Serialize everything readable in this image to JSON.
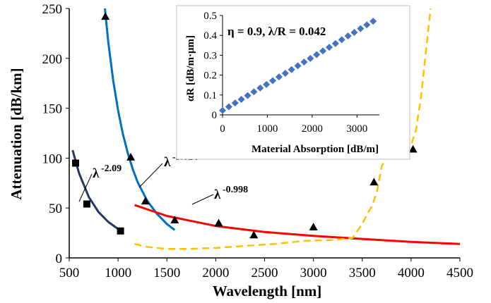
{
  "chart_data": [
    {
      "type": "scatter",
      "xlabel": "Wavelength [nm]",
      "ylabel": "Attenuation [dB/km]",
      "xlim": [
        500,
        4500
      ],
      "ylim": [
        0,
        250
      ],
      "xticks": [
        "500",
        "1000",
        "1500",
        "2000",
        "2500",
        "3000",
        "3500",
        "4000",
        "4500"
      ],
      "yticks": [
        "0",
        "50",
        "100",
        "150",
        "200",
        "250"
      ],
      "grid": false,
      "legend": "none",
      "series": [
        {
          "marker": "square",
          "color": "#000000",
          "x": [
            565,
            680,
            1025
          ],
          "y": [
            95,
            54,
            27
          ]
        },
        {
          "marker": "triangle",
          "color": "#000000",
          "x": [
            870,
            1130,
            1280,
            1580,
            2030,
            2390,
            3000,
            3620,
            4020
          ],
          "y": [
            242,
            101,
            57,
            38,
            35,
            23,
            31,
            76,
            109
          ]
        },
        {
          "style": "solid",
          "color": "#1f3864",
          "fit_label": "λ",
          "fit_exponent": "-2.09",
          "x": [
            535,
            600,
            700,
            800,
            900,
            1000,
            1030
          ],
          "y": [
            108,
            85,
            61,
            46,
            36,
            29,
            27
          ]
        },
        {
          "style": "solid",
          "color": "#0070c0",
          "fit_label": "λ",
          "fit_exponent": "-3.624",
          "x": [
            865,
            900,
            950,
            1000,
            1050,
            1100,
            1150,
            1200,
            1300,
            1400,
            1500,
            1580
          ],
          "y": [
            250,
            216,
            178,
            148,
            124,
            105,
            89,
            76,
            57,
            44,
            34,
            28
          ]
        },
        {
          "style": "solid",
          "color": "#ff0000",
          "fit_label": "λ",
          "fit_exponent": "-0.998",
          "x": [
            1170,
            1500,
            2000,
            2500,
            3000,
            3500,
            4000,
            4500
          ],
          "y": [
            53,
            42,
            32,
            26,
            22,
            19,
            16,
            14
          ]
        },
        {
          "style": "dashed",
          "color": "#ffc000",
          "x": [
            1170,
            1300,
            1500,
            1700,
            2000,
            2300,
            2600,
            2900,
            3200,
            3400,
            3500,
            3550,
            3600,
            3650,
            3700,
            3750,
            3800,
            3850,
            3900,
            3950,
            4000,
            4050,
            4100,
            4150,
            4200
          ],
          "y": [
            14,
            11,
            9,
            9,
            10,
            12,
            14,
            17,
            18,
            20,
            34,
            44,
            52,
            66,
            92,
            101,
            101,
            101,
            104,
            106,
            113,
            128,
            160,
            205,
            250
          ]
        }
      ]
    },
    {
      "type": "scatter",
      "xlabel": "Material Absorption [dB/m]",
      "ylabel": "αR [dB/m·μm]",
      "annotation": "η = 0.9, λ/R = 0.042",
      "xlim": [
        0,
        3500
      ],
      "ylim": [
        0,
        0.5
      ],
      "xticks": [
        "0",
        "1000",
        "2000",
        "3000"
      ],
      "yticks": [
        "0",
        "0.1",
        "0.2",
        "0.3",
        "0.4",
        "0.5"
      ],
      "grid": false,
      "legend": "none",
      "series": [
        {
          "marker": "diamond",
          "color": "#4472c4",
          "x": [
            0,
            140,
            280,
            420,
            560,
            700,
            840,
            980,
            1120,
            1260,
            1400,
            1540,
            1680,
            1820,
            1960,
            2100,
            2240,
            2380,
            2520,
            2660,
            2800,
            2940,
            3080,
            3220,
            3360
          ],
          "y": [
            0.022,
            0.041,
            0.06,
            0.078,
            0.097,
            0.116,
            0.135,
            0.153,
            0.172,
            0.191,
            0.209,
            0.228,
            0.247,
            0.266,
            0.284,
            0.303,
            0.322,
            0.34,
            0.359,
            0.378,
            0.397,
            0.415,
            0.434,
            0.453,
            0.471
          ]
        }
      ]
    }
  ]
}
